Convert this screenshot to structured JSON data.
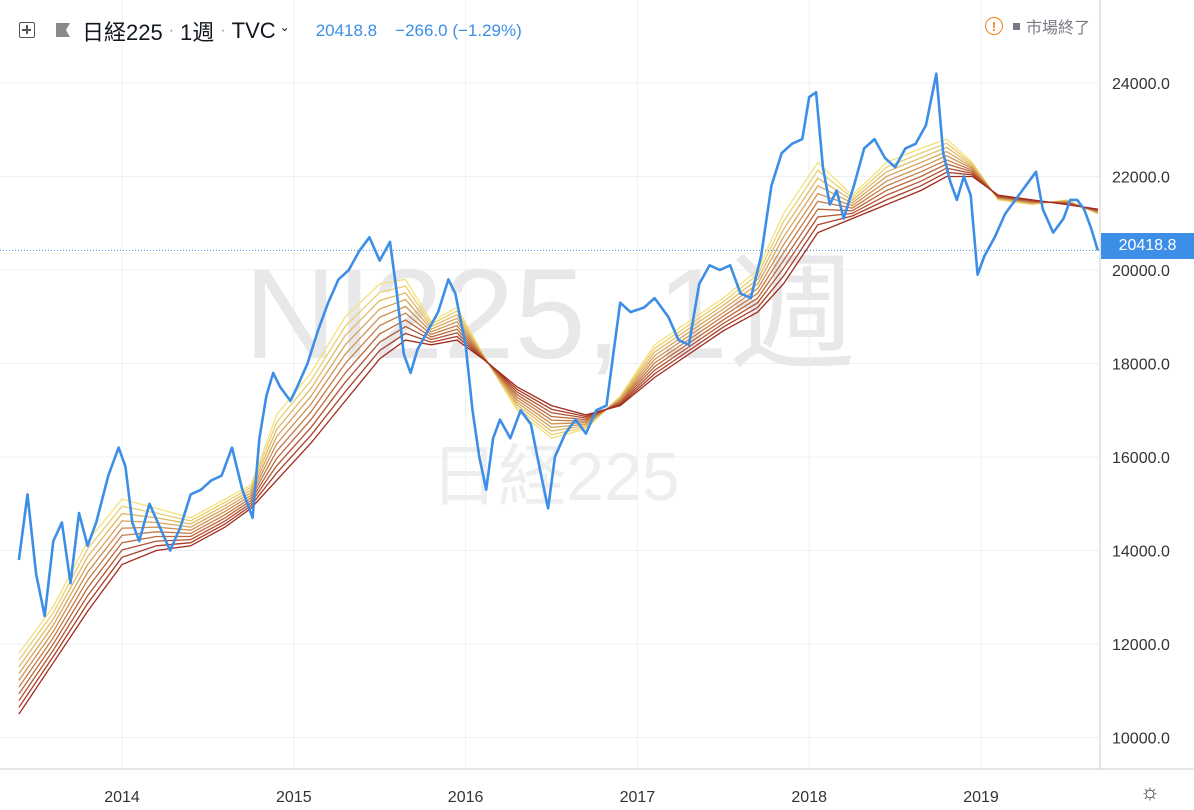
{
  "header": {
    "symbol": "日経225",
    "interval": "1週",
    "source": "TVC",
    "last_price": "20418.8",
    "change": "−266.0 (−1.29%)",
    "status": "市場終了",
    "icons": [
      "expand-icon",
      "flag-icon",
      "chevron-down-icon",
      "alert-icon",
      "settings-icon"
    ]
  },
  "watermark": {
    "line1": "NI225, 1週",
    "line2": "日経225"
  },
  "price_tag": "20418.8",
  "colors": {
    "price_line": "#3c8ee6",
    "ribbon_light": "#f3e27a",
    "ribbon_dark": "#a02a1d",
    "price_tag": "#3c8ee6"
  },
  "chart_data": {
    "type": "line",
    "y_ticks": [
      "10000.0",
      "12000.0",
      "14000.0",
      "16000.0",
      "18000.0",
      "20000.0",
      "22000.0",
      "24000.0"
    ],
    "x_ticks": [
      "2014",
      "2015",
      "2016",
      "2017",
      "2018",
      "2019"
    ],
    "ylim": [
      9000,
      25000
    ],
    "xlim": [
      2013.4,
      2019.7
    ],
    "grid": true,
    "series": [
      {
        "role": "price",
        "points": [
          [
            2013.4,
            13800
          ],
          [
            2013.45,
            15200
          ],
          [
            2013.5,
            13500
          ],
          [
            2013.55,
            12600
          ],
          [
            2013.6,
            14200
          ],
          [
            2013.65,
            14600
          ],
          [
            2013.7,
            13300
          ],
          [
            2013.75,
            14800
          ],
          [
            2013.8,
            14100
          ],
          [
            2013.85,
            14600
          ],
          [
            2013.92,
            15600
          ],
          [
            2013.98,
            16200
          ],
          [
            2014.02,
            15800
          ],
          [
            2014.06,
            14600
          ],
          [
            2014.1,
            14200
          ],
          [
            2014.16,
            15000
          ],
          [
            2014.22,
            14500
          ],
          [
            2014.28,
            14000
          ],
          [
            2014.34,
            14500
          ],
          [
            2014.4,
            15200
          ],
          [
            2014.46,
            15300
          ],
          [
            2014.52,
            15500
          ],
          [
            2014.58,
            15600
          ],
          [
            2014.64,
            16200
          ],
          [
            2014.7,
            15300
          ],
          [
            2014.76,
            14700
          ],
          [
            2014.8,
            16400
          ],
          [
            2014.84,
            17300
          ],
          [
            2014.88,
            17800
          ],
          [
            2014.92,
            17500
          ],
          [
            2014.98,
            17200
          ],
          [
            2015.02,
            17500
          ],
          [
            2015.08,
            18000
          ],
          [
            2015.14,
            18700
          ],
          [
            2015.2,
            19300
          ],
          [
            2015.26,
            19800
          ],
          [
            2015.32,
            20000
          ],
          [
            2015.38,
            20400
          ],
          [
            2015.44,
            20700
          ],
          [
            2015.5,
            20200
          ],
          [
            2015.56,
            20600
          ],
          [
            2015.6,
            19500
          ],
          [
            2015.64,
            18200
          ],
          [
            2015.68,
            17800
          ],
          [
            2015.72,
            18300
          ],
          [
            2015.78,
            18700
          ],
          [
            2015.84,
            19100
          ],
          [
            2015.9,
            19800
          ],
          [
            2015.94,
            19500
          ],
          [
            2016.0,
            18400
          ],
          [
            2016.04,
            17000
          ],
          [
            2016.08,
            16000
          ],
          [
            2016.12,
            15300
          ],
          [
            2016.16,
            16400
          ],
          [
            2016.2,
            16800
          ],
          [
            2016.26,
            16400
          ],
          [
            2016.32,
            17000
          ],
          [
            2016.38,
            16700
          ],
          [
            2016.44,
            15600
          ],
          [
            2016.48,
            14900
          ],
          [
            2016.52,
            16000
          ],
          [
            2016.58,
            16500
          ],
          [
            2016.64,
            16800
          ],
          [
            2016.7,
            16500
          ],
          [
            2016.76,
            17000
          ],
          [
            2016.82,
            17100
          ],
          [
            2016.86,
            18200
          ],
          [
            2016.9,
            19300
          ],
          [
            2016.96,
            19100
          ],
          [
            2017.04,
            19200
          ],
          [
            2017.1,
            19400
          ],
          [
            2017.18,
            19000
          ],
          [
            2017.24,
            18500
          ],
          [
            2017.3,
            18400
          ],
          [
            2017.36,
            19700
          ],
          [
            2017.42,
            20100
          ],
          [
            2017.48,
            20000
          ],
          [
            2017.54,
            20100
          ],
          [
            2017.6,
            19500
          ],
          [
            2017.66,
            19400
          ],
          [
            2017.72,
            20300
          ],
          [
            2017.78,
            21800
          ],
          [
            2017.84,
            22500
          ],
          [
            2017.9,
            22700
          ],
          [
            2017.96,
            22800
          ],
          [
            2018.0,
            23700
          ],
          [
            2018.04,
            23800
          ],
          [
            2018.08,
            22200
          ],
          [
            2018.12,
            21400
          ],
          [
            2018.16,
            21700
          ],
          [
            2018.2,
            21100
          ],
          [
            2018.26,
            21800
          ],
          [
            2018.32,
            22600
          ],
          [
            2018.38,
            22800
          ],
          [
            2018.44,
            22400
          ],
          [
            2018.5,
            22200
          ],
          [
            2018.56,
            22600
          ],
          [
            2018.62,
            22700
          ],
          [
            2018.68,
            23100
          ],
          [
            2018.74,
            24200
          ],
          [
            2018.78,
            22500
          ],
          [
            2018.82,
            21900
          ],
          [
            2018.86,
            21500
          ],
          [
            2018.9,
            22000
          ],
          [
            2018.94,
            21600
          ],
          [
            2018.98,
            19900
          ],
          [
            2019.02,
            20300
          ],
          [
            2019.08,
            20700
          ],
          [
            2019.14,
            21200
          ],
          [
            2019.2,
            21500
          ],
          [
            2019.26,
            21800
          ],
          [
            2019.32,
            22100
          ],
          [
            2019.36,
            21300
          ],
          [
            2019.42,
            20800
          ],
          [
            2019.48,
            21100
          ],
          [
            2019.52,
            21500
          ],
          [
            2019.56,
            21500
          ],
          [
            2019.6,
            21300
          ],
          [
            2019.64,
            20900
          ],
          [
            2019.68,
            20419
          ]
        ]
      },
      {
        "role": "ribbon-top",
        "points": [
          [
            2013.4,
            11800
          ],
          [
            2013.6,
            12800
          ],
          [
            2013.8,
            14200
          ],
          [
            2014.0,
            15100
          ],
          [
            2014.2,
            14900
          ],
          [
            2014.4,
            14700
          ],
          [
            2014.6,
            15100
          ],
          [
            2014.75,
            15400
          ],
          [
            2014.9,
            16900
          ],
          [
            2015.1,
            17800
          ],
          [
            2015.3,
            19000
          ],
          [
            2015.5,
            19700
          ],
          [
            2015.65,
            19800
          ],
          [
            2015.8,
            18900
          ],
          [
            2015.95,
            19200
          ],
          [
            2016.1,
            18200
          ],
          [
            2016.3,
            17000
          ],
          [
            2016.5,
            16400
          ],
          [
            2016.7,
            16600
          ],
          [
            2016.9,
            17300
          ],
          [
            2017.1,
            18400
          ],
          [
            2017.3,
            18900
          ],
          [
            2017.5,
            19400
          ],
          [
            2017.7,
            20000
          ],
          [
            2017.85,
            21200
          ],
          [
            2018.05,
            22300
          ],
          [
            2018.25,
            21600
          ],
          [
            2018.45,
            22300
          ],
          [
            2018.65,
            22600
          ],
          [
            2018.8,
            22800
          ],
          [
            2018.95,
            22300
          ],
          [
            2019.1,
            21500
          ],
          [
            2019.3,
            21400
          ],
          [
            2019.5,
            21500
          ],
          [
            2019.68,
            21200
          ]
        ]
      },
      {
        "role": "ribbon-bottom",
        "points": [
          [
            2013.4,
            10500
          ],
          [
            2013.6,
            11600
          ],
          [
            2013.8,
            12700
          ],
          [
            2014.0,
            13700
          ],
          [
            2014.2,
            14000
          ],
          [
            2014.4,
            14100
          ],
          [
            2014.6,
            14500
          ],
          [
            2014.75,
            14900
          ],
          [
            2014.9,
            15500
          ],
          [
            2015.1,
            16300
          ],
          [
            2015.3,
            17200
          ],
          [
            2015.5,
            18100
          ],
          [
            2015.65,
            18500
          ],
          [
            2015.8,
            18400
          ],
          [
            2015.95,
            18500
          ],
          [
            2016.1,
            18100
          ],
          [
            2016.3,
            17500
          ],
          [
            2016.5,
            17100
          ],
          [
            2016.7,
            16900
          ],
          [
            2016.9,
            17100
          ],
          [
            2017.1,
            17700
          ],
          [
            2017.3,
            18200
          ],
          [
            2017.5,
            18700
          ],
          [
            2017.7,
            19100
          ],
          [
            2017.85,
            19700
          ],
          [
            2018.05,
            20800
          ],
          [
            2018.25,
            21100
          ],
          [
            2018.45,
            21400
          ],
          [
            2018.65,
            21700
          ],
          [
            2018.8,
            22000
          ],
          [
            2018.95,
            22000
          ],
          [
            2019.1,
            21600
          ],
          [
            2019.3,
            21500
          ],
          [
            2019.5,
            21400
          ],
          [
            2019.68,
            21300
          ]
        ]
      }
    ]
  }
}
